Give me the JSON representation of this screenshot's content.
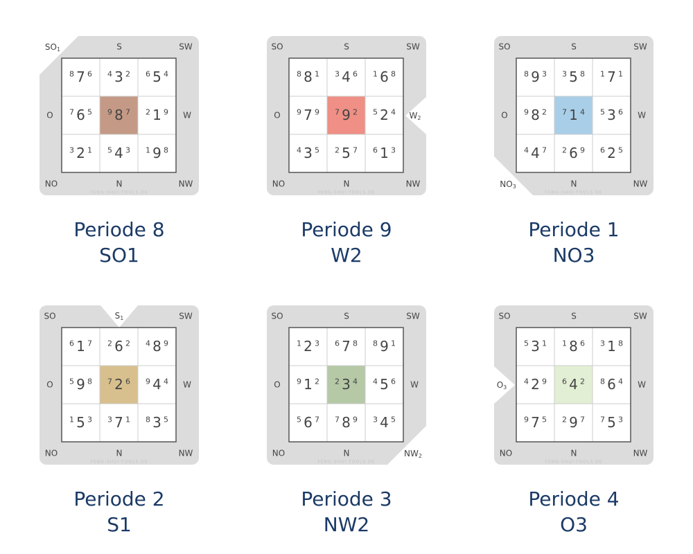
{
  "compass": [
    "SO",
    "S",
    "SW",
    "O",
    "W",
    "NO",
    "N",
    "NW"
  ],
  "watermark": "FENG-SHUI-TOOLS.DE",
  "charts": [
    {
      "period": "Periode 8",
      "facing": "SO1",
      "marker": {
        "text": "SO",
        "sub": "1",
        "position": "top-left"
      },
      "center_color": "#c49a86",
      "cells": [
        [
          [
            "8",
            "7",
            "6"
          ],
          [
            "4",
            "3",
            "2"
          ],
          [
            "6",
            "5",
            "4"
          ]
        ],
        [
          [
            "7",
            "6",
            "5"
          ],
          [
            "9",
            "8",
            "7"
          ],
          [
            "2",
            "1",
            "9"
          ]
        ],
        [
          [
            "3",
            "2",
            "1"
          ],
          [
            "5",
            "4",
            "3"
          ],
          [
            "1",
            "9",
            "8"
          ]
        ]
      ]
    },
    {
      "period": "Periode 9",
      "facing": "W2",
      "marker": {
        "text": "W",
        "sub": "2",
        "position": "right"
      },
      "center_color": "#ef8f85",
      "cells": [
        [
          [
            "8",
            "8",
            "1"
          ],
          [
            "3",
            "4",
            "6"
          ],
          [
            "1",
            "6",
            "8"
          ]
        ],
        [
          [
            "9",
            "7",
            "9"
          ],
          [
            "7",
            "9",
            "2"
          ],
          [
            "5",
            "2",
            "4"
          ]
        ],
        [
          [
            "4",
            "3",
            "5"
          ],
          [
            "2",
            "5",
            "7"
          ],
          [
            "6",
            "1",
            "3"
          ]
        ]
      ]
    },
    {
      "period": "Periode 1",
      "facing": "NO3",
      "marker": {
        "text": "NO",
        "sub": "3",
        "position": "bottom-left"
      },
      "center_color": "#a9cfe8",
      "cells": [
        [
          [
            "8",
            "9",
            "3"
          ],
          [
            "3",
            "5",
            "8"
          ],
          [
            "1",
            "7",
            "1"
          ]
        ],
        [
          [
            "9",
            "8",
            "2"
          ],
          [
            "7",
            "1",
            "4"
          ],
          [
            "5",
            "3",
            "6"
          ]
        ],
        [
          [
            "4",
            "4",
            "7"
          ],
          [
            "2",
            "6",
            "9"
          ],
          [
            "6",
            "2",
            "5"
          ]
        ]
      ]
    },
    {
      "period": "Periode 2",
      "facing": "S1",
      "marker": {
        "text": "S",
        "sub": "1",
        "position": "top"
      },
      "center_color": "#d8c08e",
      "cells": [
        [
          [
            "6",
            "1",
            "7"
          ],
          [
            "2",
            "6",
            "2"
          ],
          [
            "4",
            "8",
            "9"
          ]
        ],
        [
          [
            "5",
            "9",
            "8"
          ],
          [
            "7",
            "2",
            "6"
          ],
          [
            "9",
            "4",
            "4"
          ]
        ],
        [
          [
            "1",
            "5",
            "3"
          ],
          [
            "3",
            "7",
            "1"
          ],
          [
            "8",
            "3",
            "5"
          ]
        ]
      ]
    },
    {
      "period": "Periode 3",
      "facing": "NW2",
      "marker": {
        "text": "NW",
        "sub": "2",
        "position": "bottom-right"
      },
      "center_color": "#b5c9a6",
      "cells": [
        [
          [
            "1",
            "2",
            "3"
          ],
          [
            "6",
            "7",
            "8"
          ],
          [
            "8",
            "9",
            "1"
          ]
        ],
        [
          [
            "9",
            "1",
            "2"
          ],
          [
            "2",
            "3",
            "4"
          ],
          [
            "4",
            "5",
            "6"
          ]
        ],
        [
          [
            "5",
            "6",
            "7"
          ],
          [
            "7",
            "8",
            "9"
          ],
          [
            "3",
            "4",
            "5"
          ]
        ]
      ]
    },
    {
      "period": "Periode 4",
      "facing": "O3",
      "marker": {
        "text": "O",
        "sub": "3",
        "position": "left"
      },
      "center_color": "#e3efd5",
      "cells": [
        [
          [
            "5",
            "3",
            "1"
          ],
          [
            "1",
            "8",
            "6"
          ],
          [
            "3",
            "1",
            "8"
          ]
        ],
        [
          [
            "4",
            "2",
            "9"
          ],
          [
            "6",
            "4",
            "2"
          ],
          [
            "8",
            "6",
            "4"
          ]
        ],
        [
          [
            "9",
            "7",
            "5"
          ],
          [
            "2",
            "9",
            "7"
          ],
          [
            "7",
            "5",
            "3"
          ]
        ]
      ]
    }
  ]
}
